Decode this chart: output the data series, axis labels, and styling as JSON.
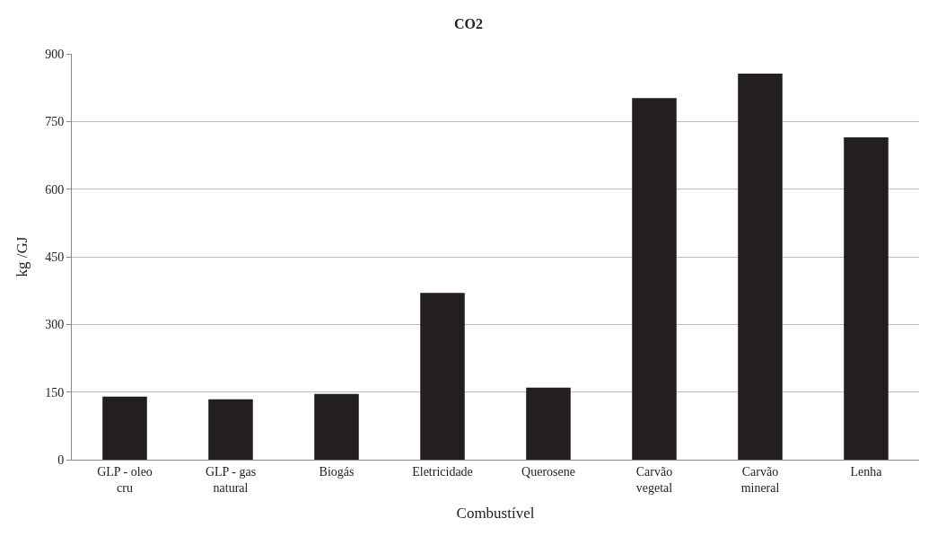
{
  "chart_data": {
    "type": "bar",
    "title": "CO2",
    "xlabel": "Combustível",
    "ylabel": "kg /GJ",
    "categories": [
      "GLP - oleo cru",
      "GLP - gas natural",
      "Biogás",
      "Eletricidade",
      "Querosene",
      "Carvão vegetal",
      "Carvão mineral",
      "Lenha"
    ],
    "values": [
      140,
      134,
      146,
      370,
      160,
      802,
      856,
      715
    ],
    "color": "#231f20",
    "ylim": [
      0,
      900
    ],
    "yticks": [
      0,
      150,
      300,
      450,
      600,
      750,
      900
    ],
    "grid": "y"
  }
}
